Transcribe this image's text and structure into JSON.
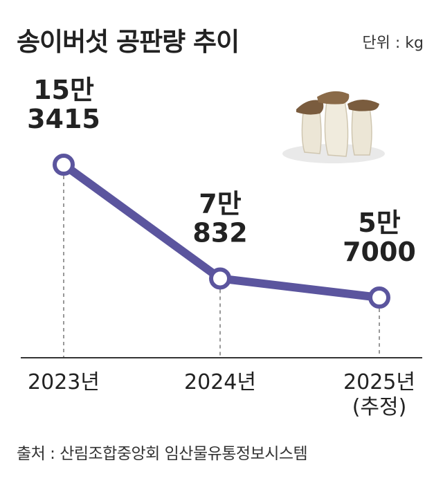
{
  "header": {
    "title": "송이버섯 공판량 추이",
    "unit": "단위 : kg"
  },
  "footer": {
    "source": "출처 : 산림조합중앙회 임산물유통정보시스템"
  },
  "colors": {
    "line": "#5b559e",
    "marker_fill": "#ffffff",
    "text": "#222222",
    "dash": "#777777",
    "baseline": "#333333"
  },
  "chart_data": {
    "type": "line",
    "categories": [
      "2023년",
      "2024년",
      "2025년"
    ],
    "category_notes": [
      "",
      "",
      "(추정)"
    ],
    "values": [
      153415,
      70832,
      57000
    ],
    "data_labels": [
      [
        "15만",
        "3415"
      ],
      [
        "7만",
        "832"
      ],
      [
        "5만",
        "7000"
      ]
    ],
    "xlabel": "",
    "ylabel": "",
    "grid": false,
    "legend": "none",
    "decoration": "king-oyster-mushroom-illustration"
  }
}
